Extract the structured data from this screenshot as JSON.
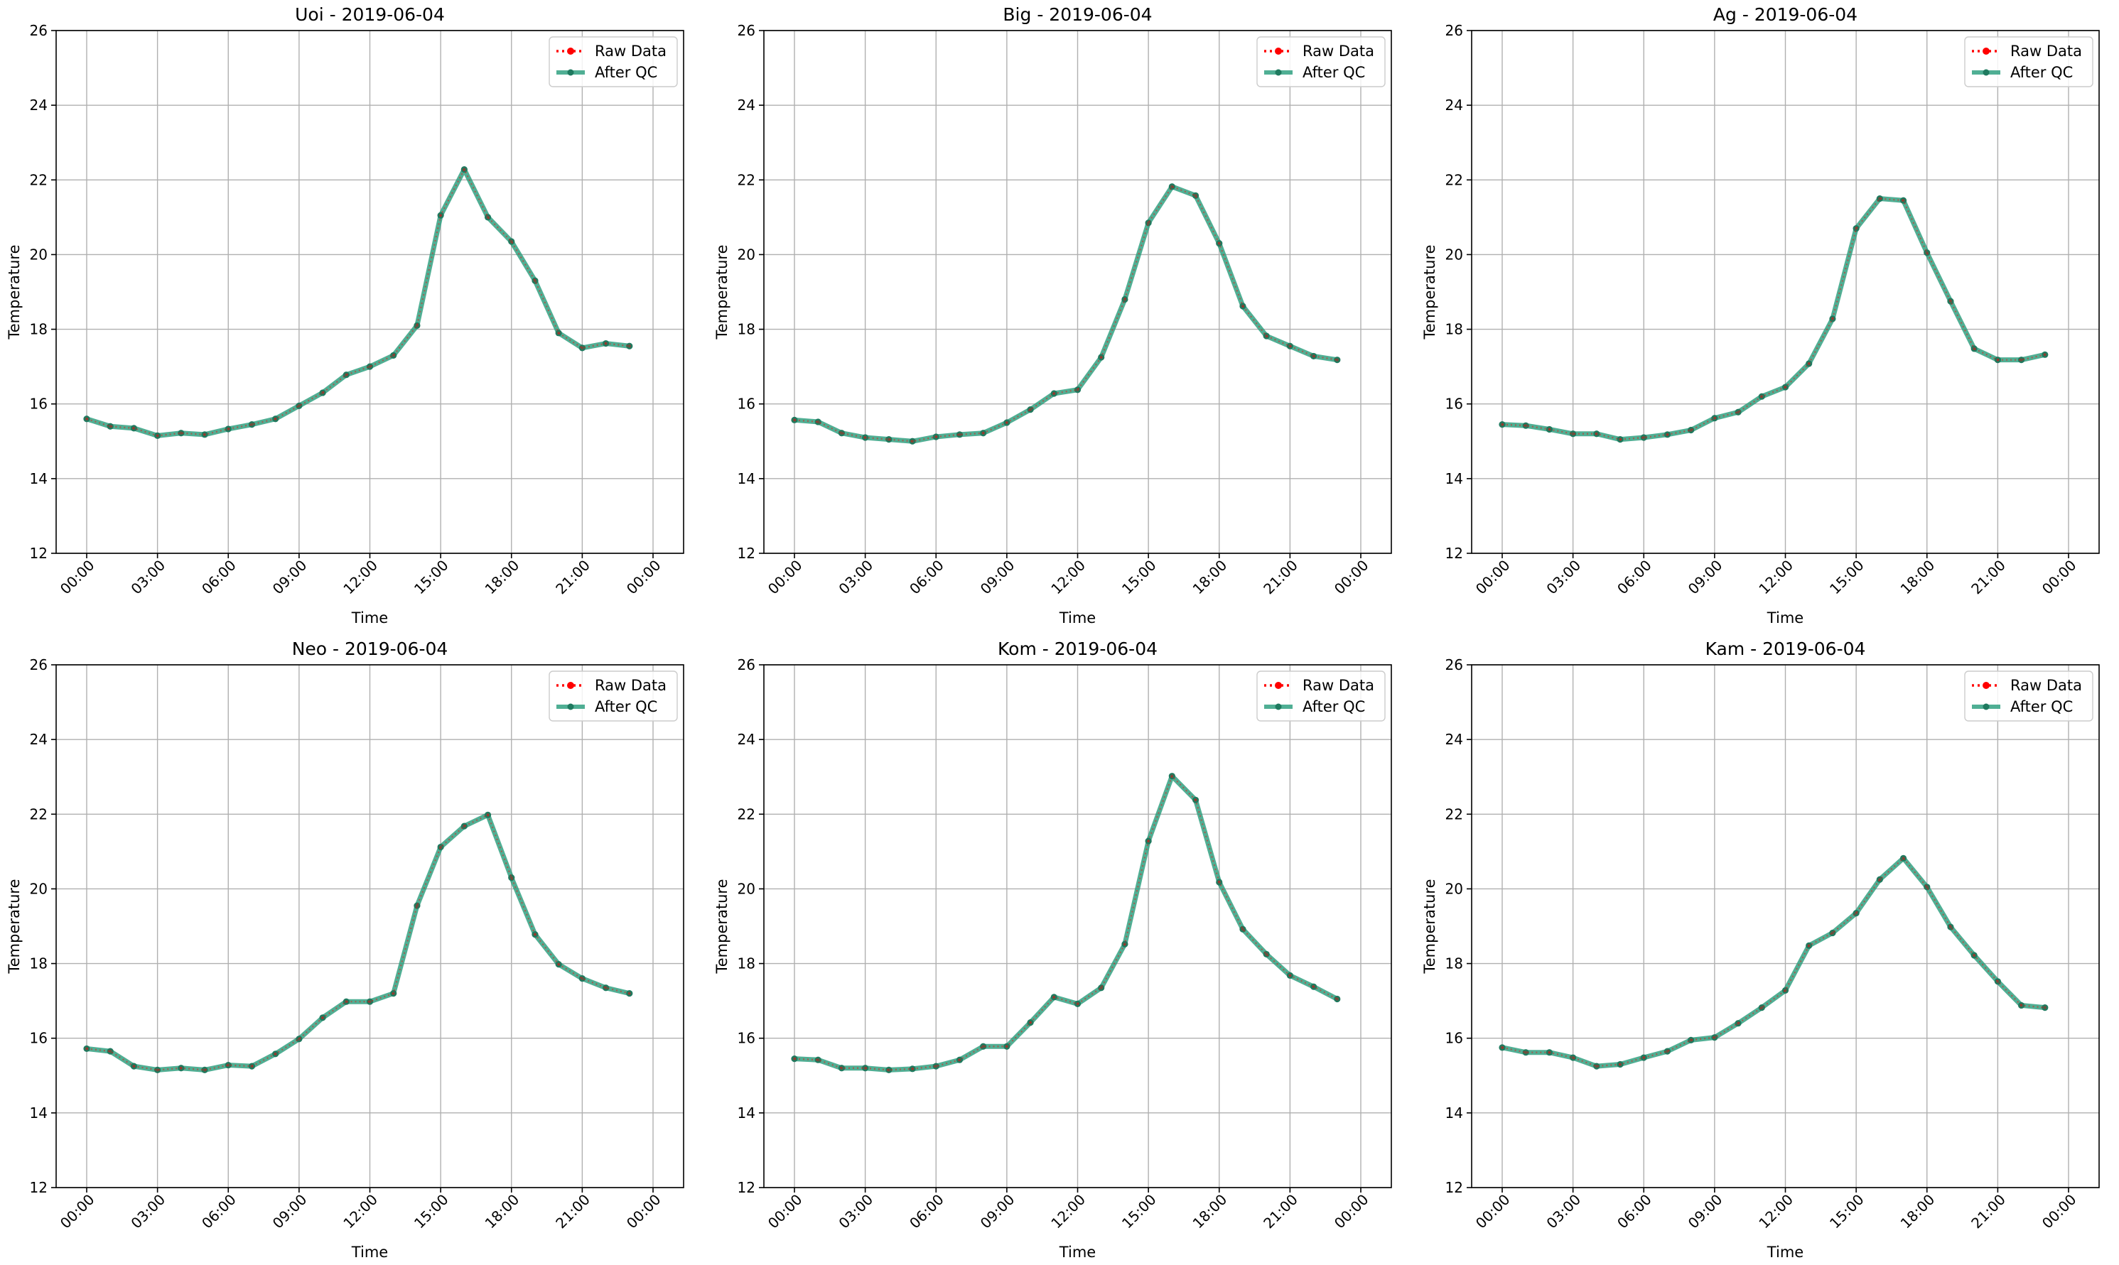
{
  "chart_data": [
    {
      "type": "line",
      "title": "Uoi - 2019-06-04",
      "xlabel": "Time",
      "ylabel": "Temperature",
      "ylim": [
        12,
        26
      ],
      "yticks": [
        "12",
        "14",
        "16",
        "18",
        "20",
        "22",
        "24",
        "26"
      ],
      "xlim": [
        "00:00",
        "24:00"
      ],
      "xticks": [
        "00:00",
        "03:00",
        "06:00",
        "09:00",
        "12:00",
        "15:00",
        "18:00",
        "21:00",
        "00:00"
      ],
      "grid": true,
      "legend_position": "top-right",
      "x": [
        "00:00",
        "01:00",
        "02:00",
        "03:00",
        "04:00",
        "05:00",
        "06:00",
        "07:00",
        "08:00",
        "09:00",
        "10:00",
        "11:00",
        "12:00",
        "13:00",
        "14:00",
        "15:00",
        "16:00",
        "17:00",
        "18:00",
        "19:00",
        "20:00",
        "21:00",
        "22:00",
        "23:00"
      ],
      "series": [
        {
          "name": "Raw Data",
          "values": [
            15.6,
            15.4,
            15.35,
            15.15,
            15.22,
            15.18,
            15.33,
            15.45,
            15.6,
            15.95,
            16.3,
            16.78,
            17.0,
            17.3,
            18.1,
            21.05,
            22.28,
            21.0,
            20.35,
            19.3,
            17.9,
            17.5,
            17.62,
            17.55
          ]
        },
        {
          "name": "After QC",
          "values": [
            15.6,
            15.4,
            15.35,
            15.15,
            15.22,
            15.18,
            15.33,
            15.45,
            15.6,
            15.95,
            16.3,
            16.78,
            17.0,
            17.3,
            18.1,
            21.05,
            22.28,
            21.0,
            20.35,
            19.3,
            17.9,
            17.5,
            17.62,
            17.55
          ]
        }
      ]
    },
    {
      "type": "line",
      "title": "Big - 2019-06-04",
      "xlabel": "Time",
      "ylabel": "Temperature",
      "ylim": [
        12,
        26
      ],
      "yticks": [
        "12",
        "14",
        "16",
        "18",
        "20",
        "22",
        "24",
        "26"
      ],
      "xlim": [
        "00:00",
        "24:00"
      ],
      "xticks": [
        "00:00",
        "03:00",
        "06:00",
        "09:00",
        "12:00",
        "15:00",
        "18:00",
        "21:00",
        "00:00"
      ],
      "grid": true,
      "legend_position": "top-right",
      "x": [
        "00:00",
        "01:00",
        "02:00",
        "03:00",
        "04:00",
        "05:00",
        "06:00",
        "07:00",
        "08:00",
        "09:00",
        "10:00",
        "11:00",
        "12:00",
        "13:00",
        "14:00",
        "15:00",
        "16:00",
        "17:00",
        "18:00",
        "19:00",
        "20:00",
        "21:00",
        "22:00",
        "23:00"
      ],
      "series": [
        {
          "name": "Raw Data",
          "values": [
            15.57,
            15.52,
            15.22,
            15.1,
            15.05,
            15.0,
            15.12,
            15.18,
            15.22,
            15.5,
            15.85,
            16.28,
            16.38,
            17.25,
            18.8,
            20.85,
            21.82,
            21.58,
            20.3,
            18.62,
            17.82,
            17.55,
            17.28,
            17.18
          ]
        },
        {
          "name": "After QC",
          "values": [
            15.57,
            15.52,
            15.22,
            15.1,
            15.05,
            15.0,
            15.12,
            15.18,
            15.22,
            15.5,
            15.85,
            16.28,
            16.38,
            17.25,
            18.8,
            20.85,
            21.82,
            21.58,
            20.3,
            18.62,
            17.82,
            17.55,
            17.28,
            17.18
          ]
        }
      ]
    },
    {
      "type": "line",
      "title": "Ag - 2019-06-04",
      "xlabel": "Time",
      "ylabel": "Temperature",
      "ylim": [
        12,
        26
      ],
      "yticks": [
        "12",
        "14",
        "16",
        "18",
        "20",
        "22",
        "24",
        "26"
      ],
      "xlim": [
        "00:00",
        "24:00"
      ],
      "xticks": [
        "00:00",
        "03:00",
        "06:00",
        "09:00",
        "12:00",
        "15:00",
        "18:00",
        "21:00",
        "00:00"
      ],
      "grid": true,
      "legend_position": "top-right",
      "x": [
        "00:00",
        "01:00",
        "02:00",
        "03:00",
        "04:00",
        "05:00",
        "06:00",
        "07:00",
        "08:00",
        "09:00",
        "10:00",
        "11:00",
        "12:00",
        "13:00",
        "14:00",
        "15:00",
        "16:00",
        "17:00",
        "18:00",
        "19:00",
        "20:00",
        "21:00",
        "22:00",
        "23:00"
      ],
      "series": [
        {
          "name": "Raw Data",
          "values": [
            15.45,
            15.42,
            15.32,
            15.2,
            15.2,
            15.05,
            15.1,
            15.18,
            15.3,
            15.62,
            15.78,
            16.2,
            16.45,
            17.08,
            18.28,
            20.7,
            21.5,
            21.45,
            20.05,
            18.75,
            17.48,
            17.18,
            17.18,
            17.32
          ]
        },
        {
          "name": "After QC",
          "values": [
            15.45,
            15.42,
            15.32,
            15.2,
            15.2,
            15.05,
            15.1,
            15.18,
            15.3,
            15.62,
            15.78,
            16.2,
            16.45,
            17.08,
            18.28,
            20.7,
            21.5,
            21.45,
            20.05,
            18.75,
            17.48,
            17.18,
            17.18,
            17.32
          ]
        }
      ]
    },
    {
      "type": "line",
      "title": "Neo - 2019-06-04",
      "xlabel": "Time",
      "ylabel": "Temperature",
      "ylim": [
        12,
        26
      ],
      "yticks": [
        "12",
        "14",
        "16",
        "18",
        "20",
        "22",
        "24",
        "26"
      ],
      "xlim": [
        "00:00",
        "24:00"
      ],
      "xticks": [
        "00:00",
        "03:00",
        "06:00",
        "09:00",
        "12:00",
        "15:00",
        "18:00",
        "21:00",
        "00:00"
      ],
      "grid": true,
      "legend_position": "top-right",
      "x": [
        "00:00",
        "01:00",
        "02:00",
        "03:00",
        "04:00",
        "05:00",
        "06:00",
        "07:00",
        "08:00",
        "09:00",
        "10:00",
        "11:00",
        "12:00",
        "13:00",
        "14:00",
        "15:00",
        "16:00",
        "17:00",
        "18:00",
        "19:00",
        "20:00",
        "21:00",
        "22:00",
        "23:00"
      ],
      "series": [
        {
          "name": "Raw Data",
          "values": [
            15.72,
            15.65,
            15.25,
            15.15,
            15.2,
            15.15,
            15.28,
            15.25,
            15.58,
            15.98,
            16.55,
            16.98,
            16.98,
            17.2,
            19.55,
            21.12,
            21.68,
            21.98,
            20.3,
            18.78,
            17.98,
            17.6,
            17.35,
            17.2
          ]
        },
        {
          "name": "After QC",
          "values": [
            15.72,
            15.65,
            15.25,
            15.15,
            15.2,
            15.15,
            15.28,
            15.25,
            15.58,
            15.98,
            16.55,
            16.98,
            16.98,
            17.2,
            19.55,
            21.12,
            21.68,
            21.98,
            20.3,
            18.78,
            17.98,
            17.6,
            17.35,
            17.2
          ]
        }
      ]
    },
    {
      "type": "line",
      "title": "Kom - 2019-06-04",
      "xlabel": "Time",
      "ylabel": "Temperature",
      "ylim": [
        12,
        26
      ],
      "yticks": [
        "12",
        "14",
        "16",
        "18",
        "20",
        "22",
        "24",
        "26"
      ],
      "xlim": [
        "00:00",
        "24:00"
      ],
      "xticks": [
        "00:00",
        "03:00",
        "06:00",
        "09:00",
        "12:00",
        "15:00",
        "18:00",
        "21:00",
        "00:00"
      ],
      "grid": true,
      "legend_position": "top-right",
      "x": [
        "00:00",
        "01:00",
        "02:00",
        "03:00",
        "04:00",
        "05:00",
        "06:00",
        "07:00",
        "08:00",
        "09:00",
        "10:00",
        "11:00",
        "12:00",
        "13:00",
        "14:00",
        "15:00",
        "16:00",
        "17:00",
        "18:00",
        "19:00",
        "20:00",
        "21:00",
        "22:00",
        "23:00"
      ],
      "series": [
        {
          "name": "Raw Data",
          "values": [
            15.45,
            15.42,
            15.2,
            15.2,
            15.15,
            15.18,
            15.25,
            15.42,
            15.78,
            15.78,
            16.42,
            17.1,
            16.92,
            17.35,
            18.52,
            21.28,
            23.02,
            22.38,
            20.18,
            18.92,
            18.25,
            17.68,
            17.38,
            17.05
          ]
        },
        {
          "name": "After QC",
          "values": [
            15.45,
            15.42,
            15.2,
            15.2,
            15.15,
            15.18,
            15.25,
            15.42,
            15.78,
            15.78,
            16.42,
            17.1,
            16.92,
            17.35,
            18.52,
            21.28,
            23.02,
            22.38,
            20.18,
            18.92,
            18.25,
            17.68,
            17.38,
            17.05
          ]
        }
      ]
    },
    {
      "type": "line",
      "title": "Kam - 2019-06-04",
      "xlabel": "Time",
      "ylabel": "Temperature",
      "ylim": [
        12,
        26
      ],
      "yticks": [
        "12",
        "14",
        "16",
        "18",
        "20",
        "22",
        "24",
        "26"
      ],
      "xlim": [
        "00:00",
        "24:00"
      ],
      "xticks": [
        "00:00",
        "03:00",
        "06:00",
        "09:00",
        "12:00",
        "15:00",
        "18:00",
        "21:00",
        "00:00"
      ],
      "grid": true,
      "legend_position": "top-right",
      "x": [
        "00:00",
        "01:00",
        "02:00",
        "03:00",
        "04:00",
        "05:00",
        "06:00",
        "07:00",
        "08:00",
        "09:00",
        "10:00",
        "11:00",
        "12:00",
        "13:00",
        "14:00",
        "15:00",
        "16:00",
        "17:00",
        "18:00",
        "19:00",
        "20:00",
        "21:00",
        "22:00",
        "23:00"
      ],
      "series": [
        {
          "name": "Raw Data",
          "values": [
            15.75,
            15.62,
            15.62,
            15.48,
            15.25,
            15.3,
            15.48,
            15.65,
            15.95,
            16.02,
            16.4,
            16.82,
            17.28,
            18.48,
            18.82,
            19.35,
            20.25,
            20.82,
            20.05,
            18.98,
            18.22,
            17.52,
            16.88,
            16.82
          ]
        },
        {
          "name": "After QC",
          "values": [
            15.75,
            15.62,
            15.62,
            15.48,
            15.25,
            15.3,
            15.48,
            15.65,
            15.95,
            16.02,
            16.4,
            16.82,
            17.28,
            18.48,
            18.82,
            19.35,
            20.25,
            20.82,
            20.05,
            18.98,
            18.22,
            17.52,
            16.88,
            16.82
          ]
        }
      ]
    }
  ],
  "colors": {
    "raw_data": "#ff0000",
    "after_qc": "#2a9d7c",
    "after_qc_marker": "#1f7a5f",
    "grid": "#b0b0b0",
    "axes": "#000000"
  }
}
